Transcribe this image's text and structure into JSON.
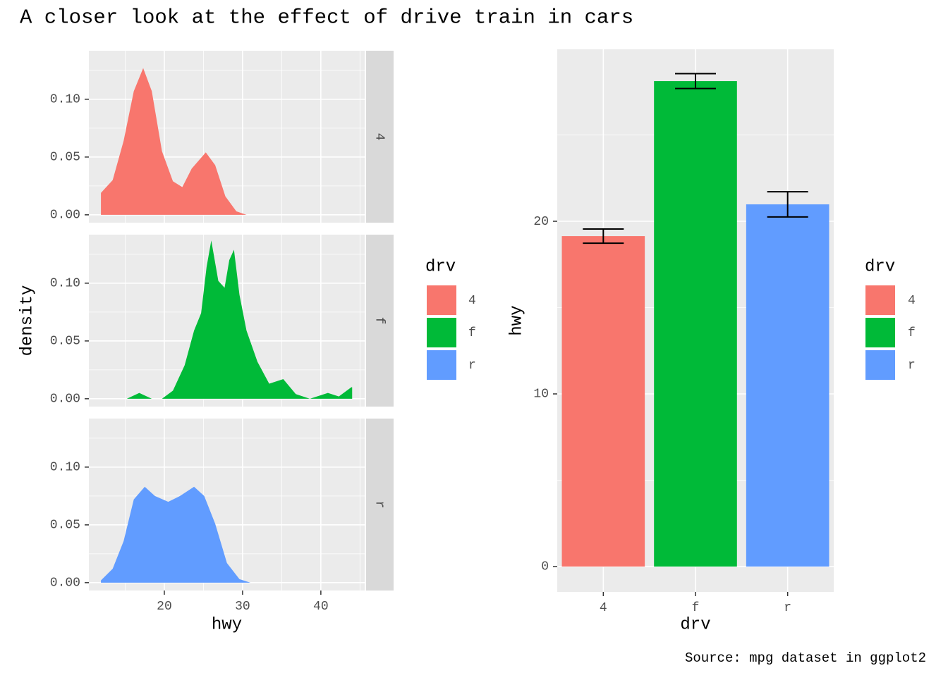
{
  "title": "A closer look at the effect of drive train in cars",
  "caption": "Source: mpg dataset in ggplot2",
  "chart_data": [
    {
      "type": "density",
      "x_label": "hwy",
      "y_label": "density",
      "legend_title": "drv",
      "xlim": [
        10.36,
        45.6
      ],
      "xticks": [
        20,
        30,
        40
      ],
      "minor_xticks": [
        15,
        25,
        35,
        45
      ],
      "ylim": [
        -0.0068,
        0.142
      ],
      "yticks": [
        {
          "value": 0,
          "label": "0.00"
        },
        {
          "value": 0.05,
          "label": "0.05"
        },
        {
          "value": 0.1,
          "label": "0.10"
        }
      ],
      "minor_yticks": [
        0.025,
        0.075,
        0.125
      ],
      "grid": true,
      "series": [
        {
          "name": "4",
          "color": "#f8766d",
          "x": [
            11.9,
            13.4,
            14.8,
            16.1,
            17.3,
            18.4,
            19.7,
            21.1,
            22.3,
            23.5,
            25.3,
            26.5,
            27.8,
            29.2,
            30.5
          ],
          "values": [
            0.019,
            0.03,
            0.064,
            0.107,
            0.127,
            0.107,
            0.055,
            0.029,
            0.024,
            0.04,
            0.054,
            0.043,
            0.016,
            0.003,
            0
          ]
        },
        {
          "name": "f",
          "color": "#00ba38",
          "x": [
            15.2,
            16.8,
            18.4,
            19.7,
            21.1,
            22.6,
            23.8,
            24.7,
            25.4,
            26.0,
            26.9,
            27.7,
            28.3,
            28.9,
            29.6,
            30.5,
            31.9,
            33.4,
            35.2,
            36.8,
            38.6,
            40.9,
            42.3,
            43.9,
            44.0
          ],
          "values": [
            0,
            0.005,
            0,
            0,
            0.007,
            0.029,
            0.059,
            0.074,
            0.114,
            0.137,
            0.102,
            0.096,
            0.12,
            0.129,
            0.09,
            0.059,
            0.032,
            0.013,
            0.017,
            0.004,
            0,
            0.005,
            0.002,
            0.01,
            0.01
          ]
        },
        {
          "name": "r",
          "color": "#619cff",
          "x": [
            11.9,
            13.4,
            14.8,
            16.1,
            17.5,
            18.8,
            20.5,
            22.0,
            23.8,
            25.1,
            26.5,
            28.0,
            29.6,
            31.0
          ],
          "values": [
            0.002,
            0.012,
            0.036,
            0.072,
            0.083,
            0.075,
            0.07,
            0.075,
            0.083,
            0.075,
            0.051,
            0.017,
            0.003,
            0
          ]
        }
      ]
    },
    {
      "type": "bar",
      "x_label": "drv",
      "y_label": "hwy",
      "legend_title": "drv",
      "categories": [
        "4",
        "f",
        "r"
      ],
      "values": [
        19.14,
        28.12,
        20.98
      ],
      "errors": [
        0.41,
        0.43,
        0.73
      ],
      "colors": [
        "#f8766d",
        "#00ba38",
        "#619cff"
      ],
      "ylim": [
        -1.47,
        29.96
      ],
      "yticks": [
        0,
        10,
        20
      ],
      "minor_yticks": [
        5,
        15,
        25
      ],
      "grid": true
    }
  ]
}
